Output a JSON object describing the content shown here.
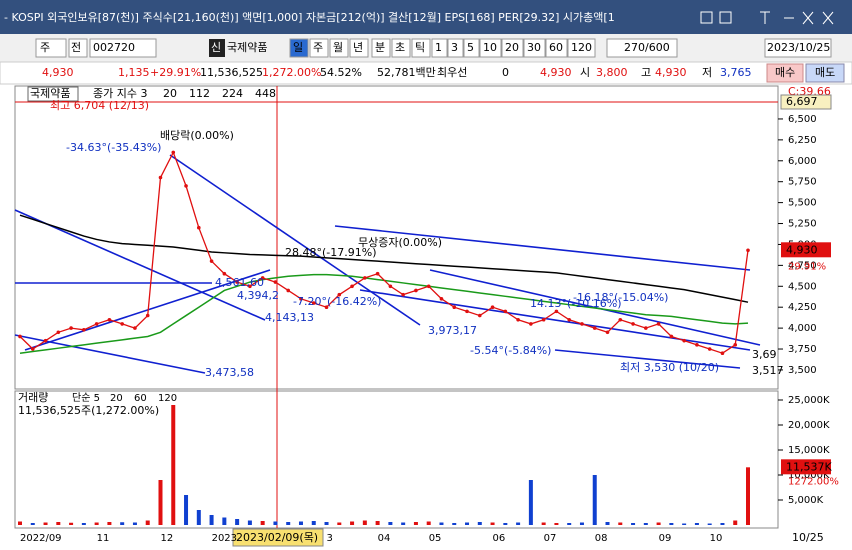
{
  "header": {
    "title": "- KOSPI 외국인보유[87(천)] 주식수[21,160(천)] 액면[1,000] 자본금[212(억)] 결산[12월] EPS[168] PER[29.32] 시가총액[1"
  },
  "toolbar": {
    "market": "주",
    "mode": "전",
    "code": "002720",
    "badge": "신",
    "name": "국제약품",
    "periods": [
      "일",
      "주",
      "월",
      "년",
      "분",
      "초",
      "틱"
    ],
    "intervals": [
      "1",
      "3",
      "5",
      "10",
      "20",
      "30",
      "60",
      "120"
    ],
    "count": "270/600",
    "date": "2023/10/25"
  },
  "quote": {
    "price": "4,930",
    "change": "1,135",
    "rate": "+29.91%",
    "volume": "11,536,525",
    "volume_ratio": "1,272.00%",
    "turnover": "54.52%",
    "amount": "52,781백만",
    "best_label": "최우선",
    "best": "0",
    "best_price": "4,930",
    "open_label": "시",
    "open": "3,800",
    "high_label": "고",
    "high": "4,930",
    "low_label": "저",
    "low": "3,765",
    "buy": "매수",
    "sell": "매도"
  },
  "chart_data": {
    "type": "line",
    "title": "국제약품",
    "categories": [
      "2022/09",
      null,
      null,
      null,
      null,
      null,
      "11",
      null,
      null,
      null,
      null,
      "12",
      null,
      null,
      null,
      "2023",
      null,
      null,
      null,
      null,
      null,
      null,
      null,
      null,
      "3",
      null,
      null,
      null,
      "04",
      null,
      null,
      null,
      "05",
      null,
      null,
      null,
      null,
      "06",
      null,
      null,
      null,
      "07",
      null,
      null,
      null,
      "08",
      null,
      null,
      null,
      null,
      "09",
      null,
      null,
      null,
      "10",
      null,
      null,
      null
    ],
    "series": [
      {
        "name": "종가 지수 3",
        "color": "#e01010",
        "values": [
          3900,
          3750,
          3850,
          3950,
          4000,
          3980,
          4050,
          4100,
          4050,
          4000,
          4150,
          5800,
          6100,
          5700,
          5200,
          4800,
          4650,
          4550,
          4500,
          4600,
          4550,
          4450,
          4350,
          4300,
          4250,
          4400,
          4500,
          4600,
          4650,
          4500,
          4400,
          4450,
          4500,
          4350,
          4250,
          4200,
          4150,
          4250,
          4200,
          4100,
          4050,
          4100,
          4200,
          4100,
          4050,
          4000,
          3950,
          4100,
          4050,
          4000,
          4050,
          3900,
          3850,
          3800,
          3750,
          3700,
          3800,
          4930
        ],
        "value_labels": [
          null,
          null,
          null,
          null,
          null,
          null,
          null,
          null,
          null,
          null,
          null,
          null,
          null,
          null,
          null,
          null,
          null,
          null,
          null,
          null,
          null,
          null,
          null,
          null,
          null,
          null,
          null,
          null,
          null,
          null,
          null,
          null,
          null,
          null,
          null,
          null,
          null,
          null,
          null,
          null,
          null,
          null,
          null,
          null,
          null,
          null,
          null,
          null,
          null,
          null,
          null,
          null,
          null,
          null,
          null,
          null,
          null,
          "4,930"
        ],
        "change_label": "29.91%"
      }
    ],
    "moving_averages": [
      {
        "name": "20",
        "color": "#1f40c8"
      },
      {
        "name": "112",
        "color": "#1a9a1a",
        "values": [
          3700,
          3720,
          3740,
          3760,
          3780,
          3800,
          3820,
          3840,
          3860,
          3880,
          3900,
          3950,
          4050,
          4150,
          4250,
          4350,
          4450,
          4500,
          4550,
          4580,
          4600,
          4620,
          4630,
          4640,
          4640,
          4630,
          4620,
          4600,
          4580,
          4560,
          4540,
          4520,
          4500,
          4480,
          4460,
          4440,
          4420,
          4400,
          4380,
          4360,
          4340,
          4320,
          4300,
          4280,
          4260,
          4240,
          4220,
          4200,
          4180,
          4160,
          4150,
          4140,
          4120,
          4100,
          4080,
          4060,
          4050,
          4060
        ]
      },
      {
        "name": "224",
        "color": "#000000",
        "values": [
          5350,
          5300,
          5250,
          5200,
          5150,
          5100,
          5060,
          5030,
          5010,
          5000,
          4990,
          4980,
          4970,
          4950,
          4930,
          4910,
          4900,
          4890,
          4880,
          4875,
          4870,
          4865,
          4860,
          4850,
          4840,
          4830,
          4820,
          4810,
          4800,
          4790,
          4780,
          4770,
          4760,
          4750,
          4740,
          4730,
          4720,
          4710,
          4700,
          4690,
          4680,
          4670,
          4660,
          4640,
          4620,
          4600,
          4580,
          4560,
          4540,
          4520,
          4500,
          4480,
          4460,
          4430,
          4400,
          4370,
          4340,
          4310
        ]
      },
      {
        "name": "448",
        "color": "#0000c0"
      }
    ],
    "ylim": [
      3320,
      6870
    ],
    "yticks": [
      {
        "value": 3500,
        "label": "3,500"
      },
      {
        "value": 3750,
        "label": "3,750"
      },
      {
        "value": 4000,
        "label": "4,000"
      },
      {
        "value": 4250,
        "label": "4,250"
      },
      {
        "value": 4500,
        "label": "4,500"
      },
      {
        "value": 4750,
        "label": "4,750"
      },
      {
        "value": 5000,
        "label": "5,000"
      },
      {
        "value": 5250,
        "label": "5,250"
      },
      {
        "value": 5500,
        "label": "5,500"
      },
      {
        "value": 5750,
        "label": "5,750"
      },
      {
        "value": 6000,
        "label": "6,000"
      },
      {
        "value": 6250,
        "label": "6,250"
      },
      {
        "value": 6500,
        "label": "6,500"
      }
    ],
    "grid": false,
    "last_date": "10/25",
    "cursor_date": "2023/02/09(목)",
    "indicator": "C:39.66",
    "level_label": "6,697",
    "annotations": {
      "high": "최고 6,704 (12/13)",
      "low": "최저 3,530 (10/20)",
      "dividend": "배당락(0.00%)",
      "bonus": "무상증자(0.00%)",
      "a1": "-34.63°(-35.43%)",
      "a2": "4,561,60",
      "a3": "4,394,2",
      "a4": "4,143,13",
      "a5": "3,973,17",
      "a6": "3,473,58",
      "a7": "-7.20°(-16.42%)",
      "a8": "28.48°(-17.91%)",
      "a9": "-5.54°(-5.84%)",
      "a10": "14.13°(-10.16%)",
      "a11": "-16.18°(-15.04%)",
      "a12": "3,69",
      "a13": "3,517"
    },
    "volume": {
      "name": "거래량",
      "summary": "11,536,525주(1,272.00%)",
      "ma_labels": [
        "단순 5",
        "20",
        "60",
        "120"
      ],
      "color_up": "#e01010",
      "color_down": "#1040d0",
      "values": [
        700,
        400,
        500,
        600,
        450,
        400,
        500,
        600,
        550,
        500,
        900,
        9000,
        24000,
        6000,
        3000,
        2000,
        1500,
        1200,
        900,
        800,
        700,
        600,
        700,
        800,
        600,
        500,
        700,
        900,
        800,
        600,
        500,
        600,
        700,
        500,
        400,
        500,
        600,
        500,
        400,
        500,
        9000,
        500,
        400,
        400,
        500,
        10000,
        600,
        500,
        400,
        400,
        500,
        400,
        300,
        400,
        300,
        400,
        900,
        11537
      ],
      "value_labels": [
        null,
        null,
        null,
        null,
        null,
        null,
        null,
        null,
        null,
        null,
        null,
        null,
        null,
        null,
        null,
        null,
        null,
        null,
        null,
        null,
        null,
        null,
        null,
        null,
        null,
        null,
        null,
        null,
        null,
        null,
        null,
        null,
        null,
        null,
        null,
        null,
        null,
        null,
        null,
        null,
        null,
        null,
        null,
        null,
        null,
        null,
        null,
        null,
        null,
        null,
        null,
        null,
        null,
        null,
        null,
        null,
        null,
        "11,537K"
      ],
      "ratio_label": "1272.00%",
      "ylim": [
        0,
        26400
      ],
      "yticks": [
        {
          "value": 5000,
          "label": "5,000K"
        },
        {
          "value": 10000,
          "label": "10,000K"
        },
        {
          "value": 15000,
          "label": "15,000K"
        },
        {
          "value": 20000,
          "label": "20,000K"
        },
        {
          "value": 25000,
          "label": "25,000K"
        }
      ]
    }
  }
}
